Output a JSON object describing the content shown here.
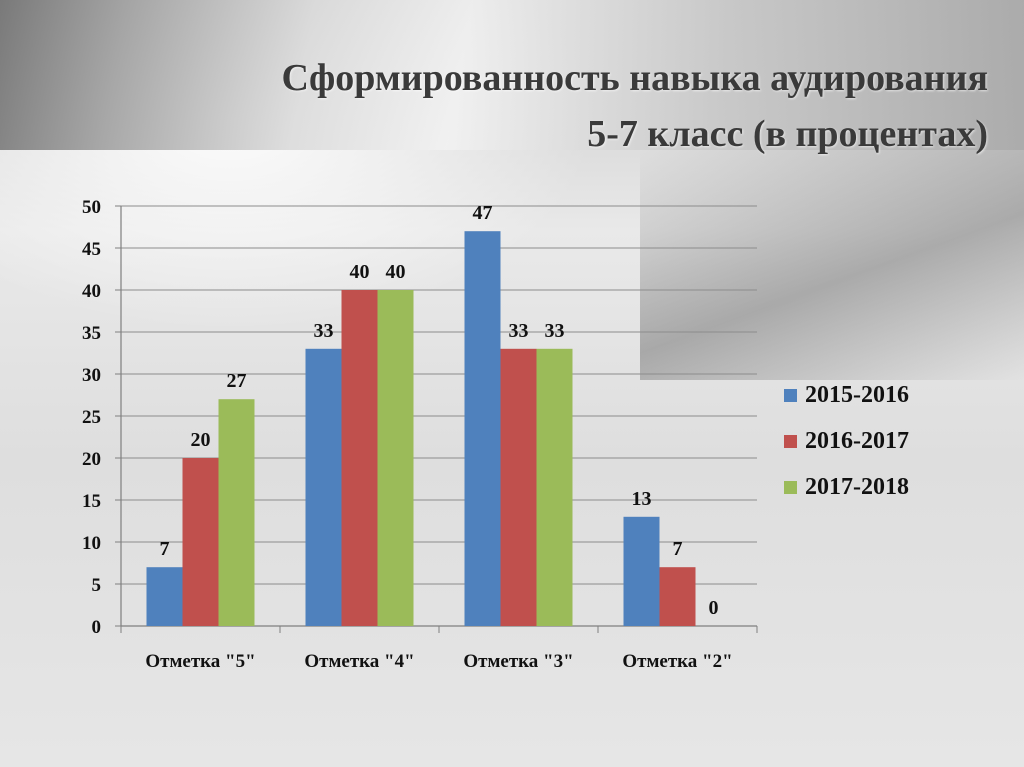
{
  "slide": {
    "title_line1": "Сформированность навыка аудирования",
    "title_line2": "5-7 класс (в процентах)"
  },
  "colors": {
    "series_2015_2016": "#4f81bd",
    "series_2016_2017": "#c0504d",
    "series_2017_2018": "#9bbb59"
  },
  "chart_data": {
    "type": "bar",
    "title": "Сформированность навыка аудирования 5-7 класс (в процентах)",
    "categories": [
      "Отметка \"5\"",
      "Отметка \"4\"",
      "Отметка \"3\"",
      "Отметка \"2\""
    ],
    "series": [
      {
        "name": "2015-2016",
        "values": [
          7,
          33,
          47,
          13
        ],
        "color": "#4f81bd"
      },
      {
        "name": "2016-2017",
        "values": [
          20,
          40,
          33,
          7
        ],
        "color": "#c0504d"
      },
      {
        "name": "2017-2018",
        "values": [
          27,
          40,
          33,
          0
        ],
        "color": "#9bbb59"
      }
    ],
    "ylim": [
      0,
      50
    ],
    "yticks": [
      0,
      5,
      10,
      15,
      20,
      25,
      30,
      35,
      40,
      45,
      50
    ],
    "grid": true,
    "legend": "right",
    "data_labels": true
  }
}
